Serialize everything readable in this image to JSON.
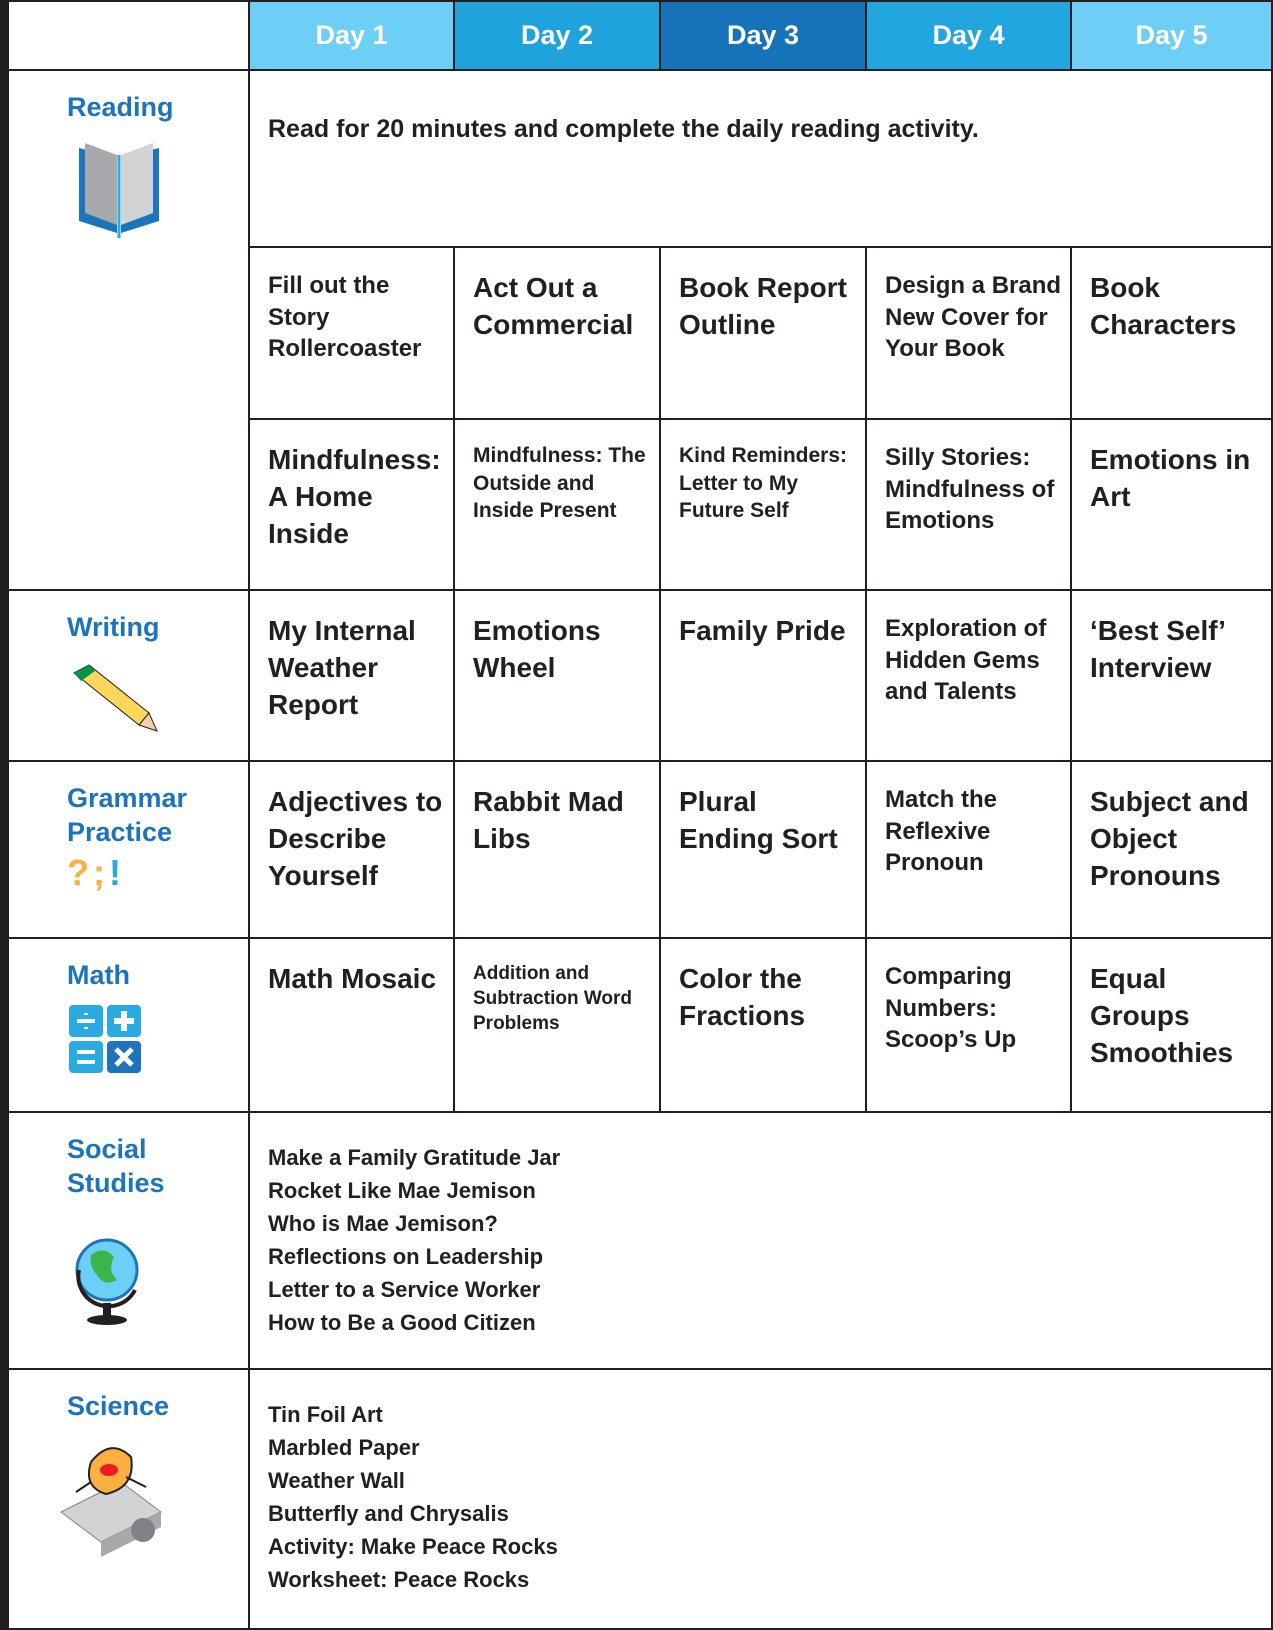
{
  "days": [
    "Day 1",
    "Day 2",
    "Day 3",
    "Day 4",
    "Day 5"
  ],
  "reading": {
    "label": "Reading",
    "intro": "Read for 20 minutes and complete the daily reading activity.",
    "row1": [
      "Fill out the Story Rollercoaster",
      "Act Out a Commercial",
      "Book Report Outline",
      "Design a Brand New Cover for Your Book",
      "Book Characters"
    ],
    "row2": [
      "Mindfulness: A Home Inside",
      "Mindfulness: The Outside and Inside Present",
      "Kind Reminders: Letter to My Future Self",
      "Silly Stories: Mindfulness of Emotions",
      "Emotions in Art"
    ]
  },
  "writing": {
    "label": "Writing",
    "activities": [
      "My Internal Weather Report",
      "Emotions Wheel",
      "Family Pride",
      "Exploration of Hidden Gems and Talents",
      "‘Best Self’ Interview"
    ]
  },
  "grammar": {
    "label": "Grammar Practice",
    "symbols": [
      "?",
      ";",
      "!"
    ],
    "activities": [
      "Adjectives to Describe Yourself",
      "Rabbit Mad Libs",
      "Plural Ending Sort",
      "Match the Reflexive Pronoun",
      "Subject and Object Pronouns"
    ]
  },
  "math": {
    "label": "Math",
    "activities": [
      "Math Mosaic",
      "Addition and Subtraction Word Problems",
      "Color the Fractions",
      "Comparing Numbers: Scoop’s Up",
      "Equal Groups Smoothies"
    ]
  },
  "social_studies": {
    "label": "Social Studies",
    "items": [
      "Make a Family Gratitude Jar",
      "Rocket Like Mae Jemison",
      "Who is Mae Jemison?",
      "Reflections on Leadership",
      "Letter to a Service Worker",
      "How to Be a Good Citizen"
    ]
  },
  "science": {
    "label": "Science",
    "items": [
      "Tin Foil Art",
      "Marbled Paper",
      "Weather Wall",
      "Butterfly and Chrysalis",
      "Activity: Make Peace Rocks",
      "Worksheet: Peace Rocks"
    ]
  }
}
